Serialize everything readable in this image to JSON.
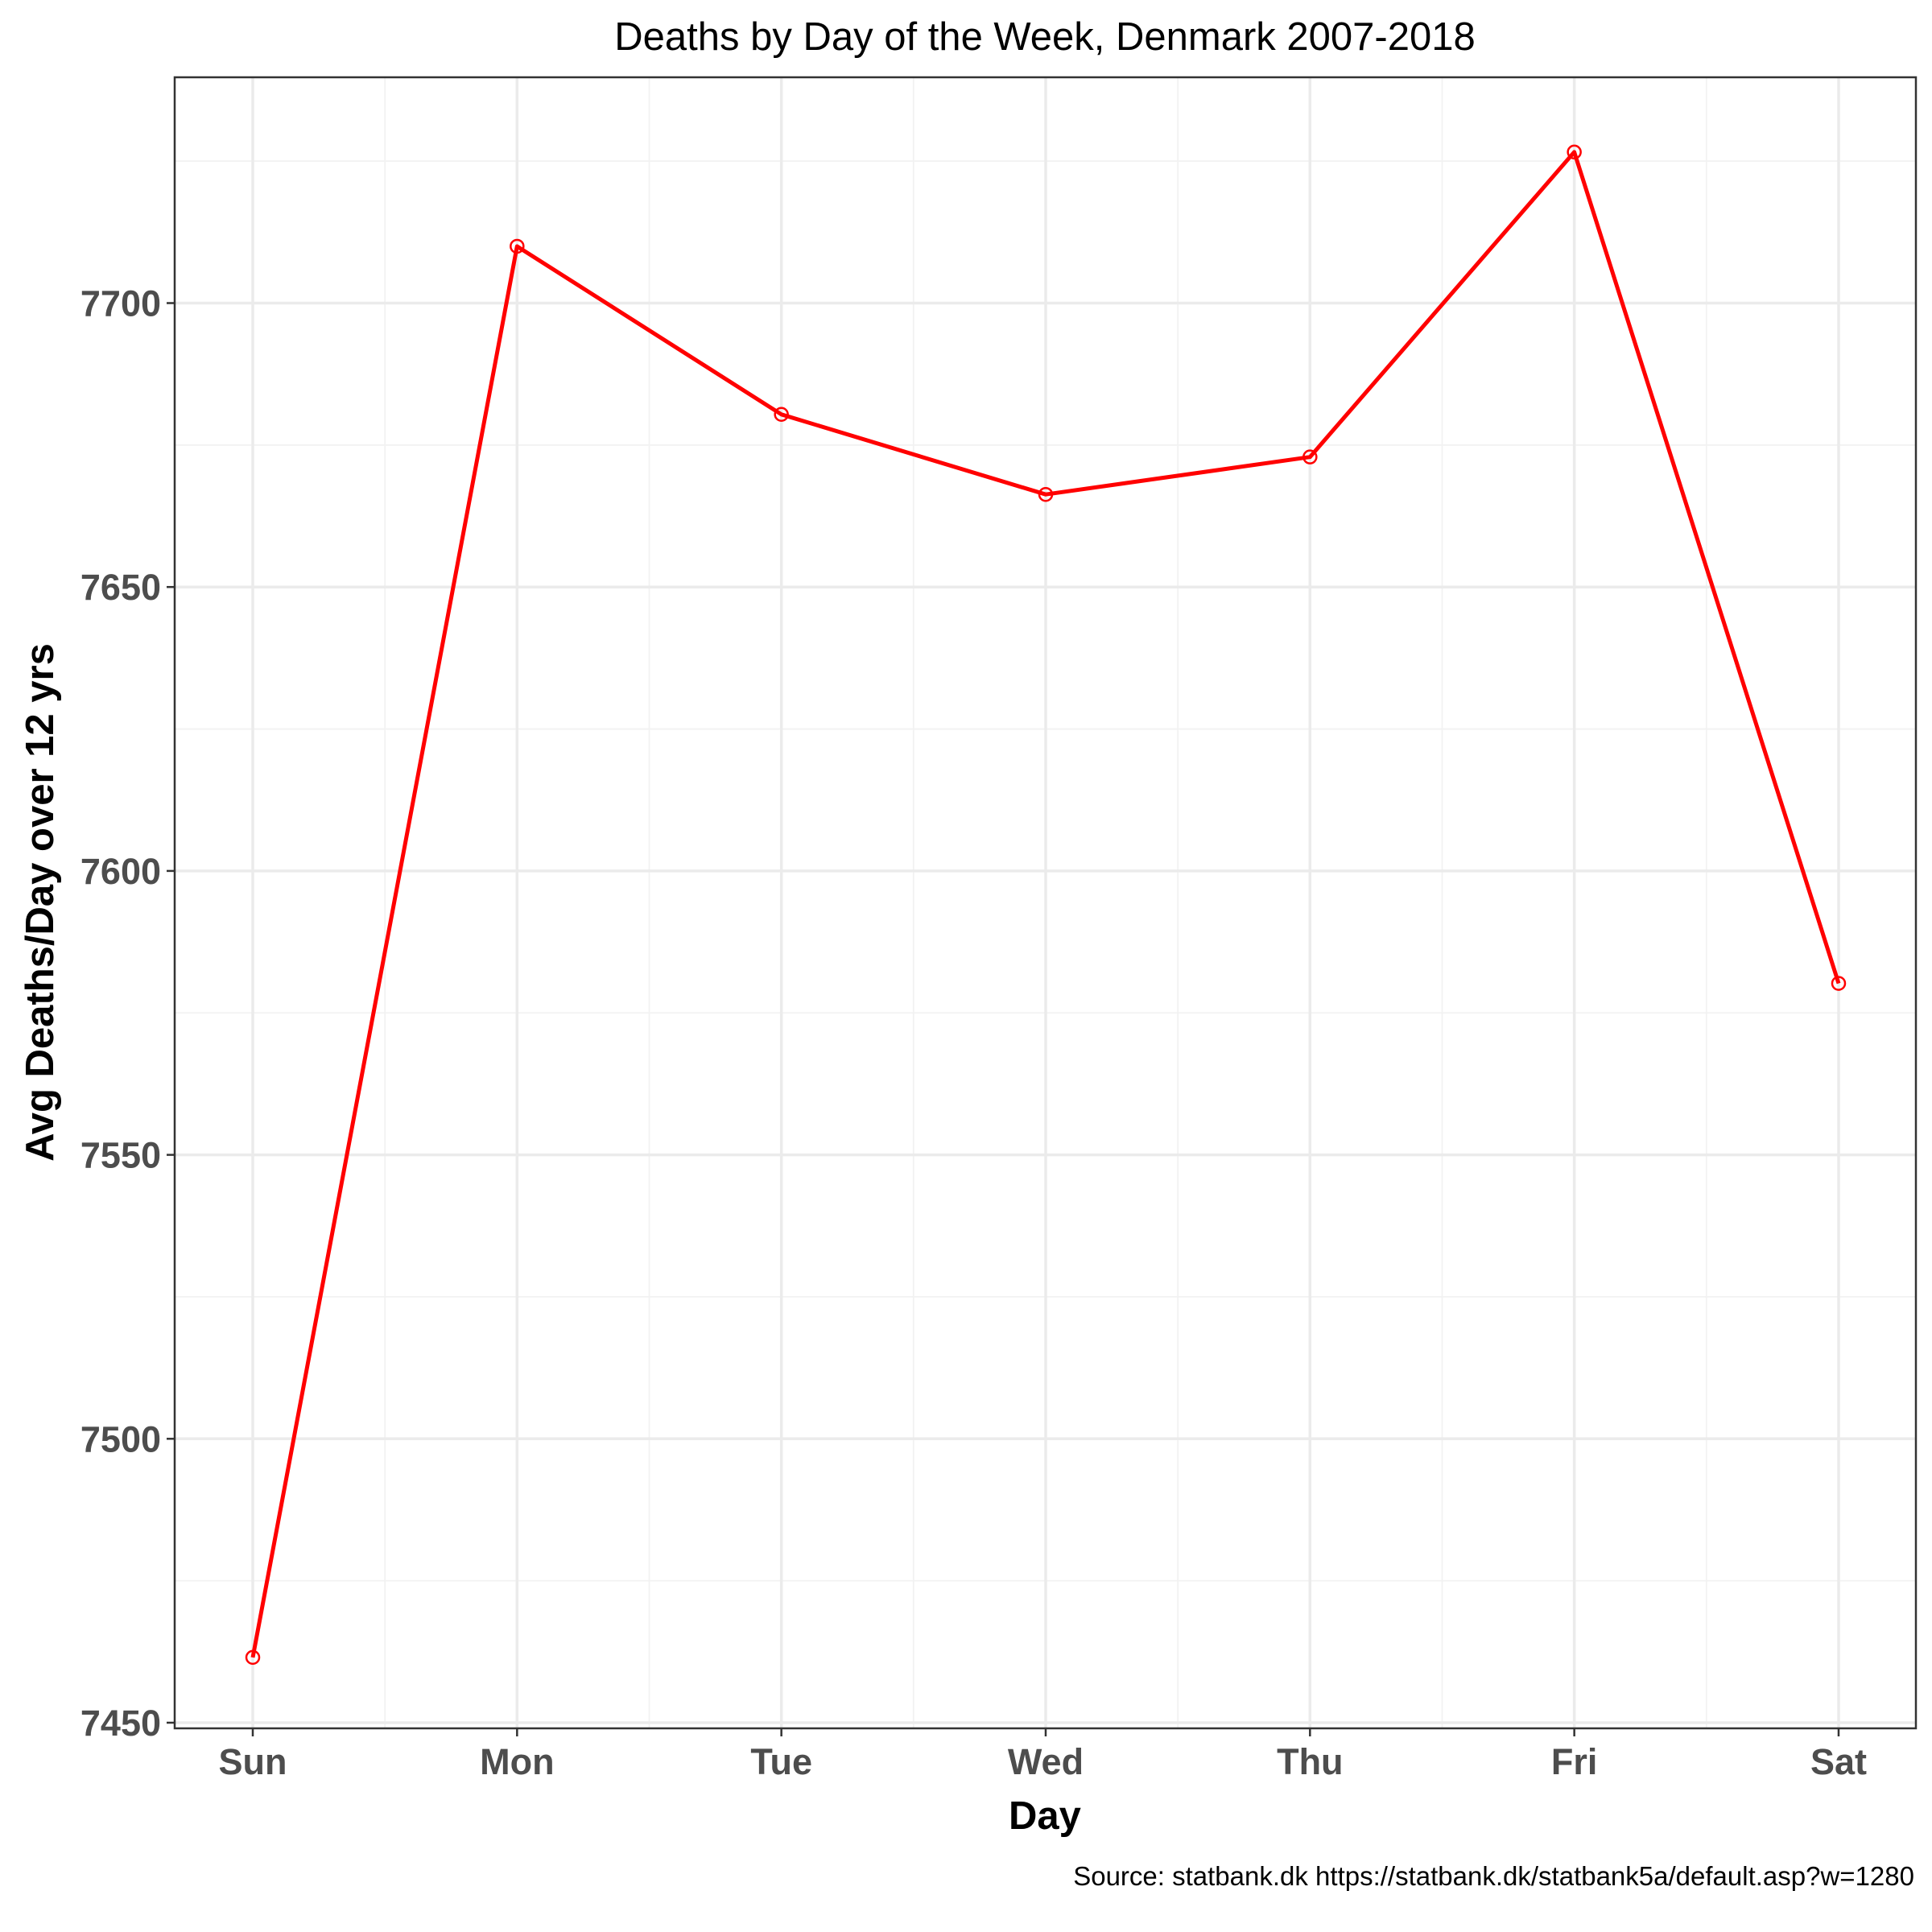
{
  "chart_data": {
    "type": "line",
    "title": "Deaths by Day of the Week, Denmark 2007-2018",
    "xlabel": "Day",
    "ylabel": "Avg Deaths/Day over 12 yrs",
    "caption": "Source: statbank.dk https://statbank.dk/statbank5a/default.asp?w=1280",
    "categories": [
      "Sun",
      "Mon",
      "Tue",
      "Wed",
      "Thu",
      "Fri",
      "Sat"
    ],
    "values": [
      7461.5,
      7710.0,
      7680.4,
      7666.3,
      7672.9,
      7726.6,
      7580.2
    ],
    "ylim": [
      7450,
      7735
    ],
    "yticks": [
      7450,
      7500,
      7550,
      7600,
      7650,
      7700
    ],
    "grid": true,
    "legend": "none",
    "colors": {
      "series": "#ff0000",
      "background": "#ffffff",
      "panel_border": "#333333"
    }
  }
}
